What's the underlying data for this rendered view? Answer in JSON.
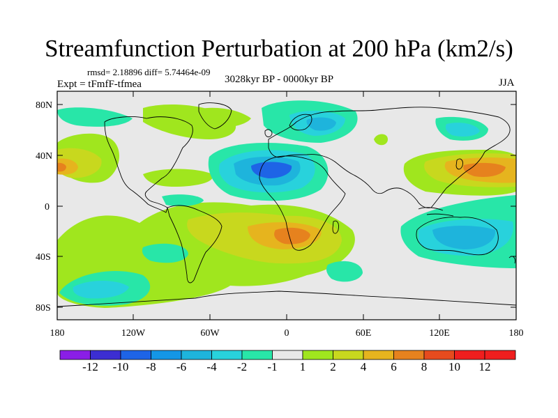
{
  "plot": {
    "title": "Streamfunction Perturbation at 200 hPa (km2/s)",
    "stats": "rmsd= 2.18896 diff= 5.74464e-09",
    "experiment": "Expt = tFmfF-tfmea",
    "period": "3028kyr BP - 0000kyr BP",
    "season": "JJA",
    "lat_labels": [
      "80N",
      "40N",
      "0",
      "40S",
      "80S"
    ],
    "lon_labels": [
      "180",
      "120W",
      "60W",
      "0",
      "60E",
      "120E",
      "180"
    ]
  },
  "colorbar": {
    "labels": [
      "-12",
      "-10",
      "-8",
      "-6",
      "-4",
      "-2",
      "-1",
      "1",
      "2",
      "4",
      "6",
      "8",
      "10",
      "12"
    ],
    "colors": [
      "#8a1ee6",
      "#3c2ed2",
      "#1e64e6",
      "#1496e6",
      "#1eb4dc",
      "#28d2dc",
      "#28e6a8",
      "#e8e8e8",
      "#a0e61e",
      "#c8d81e",
      "#e6b41e",
      "#e6821e",
      "#e64b1e",
      "#f01e1e"
    ]
  }
}
